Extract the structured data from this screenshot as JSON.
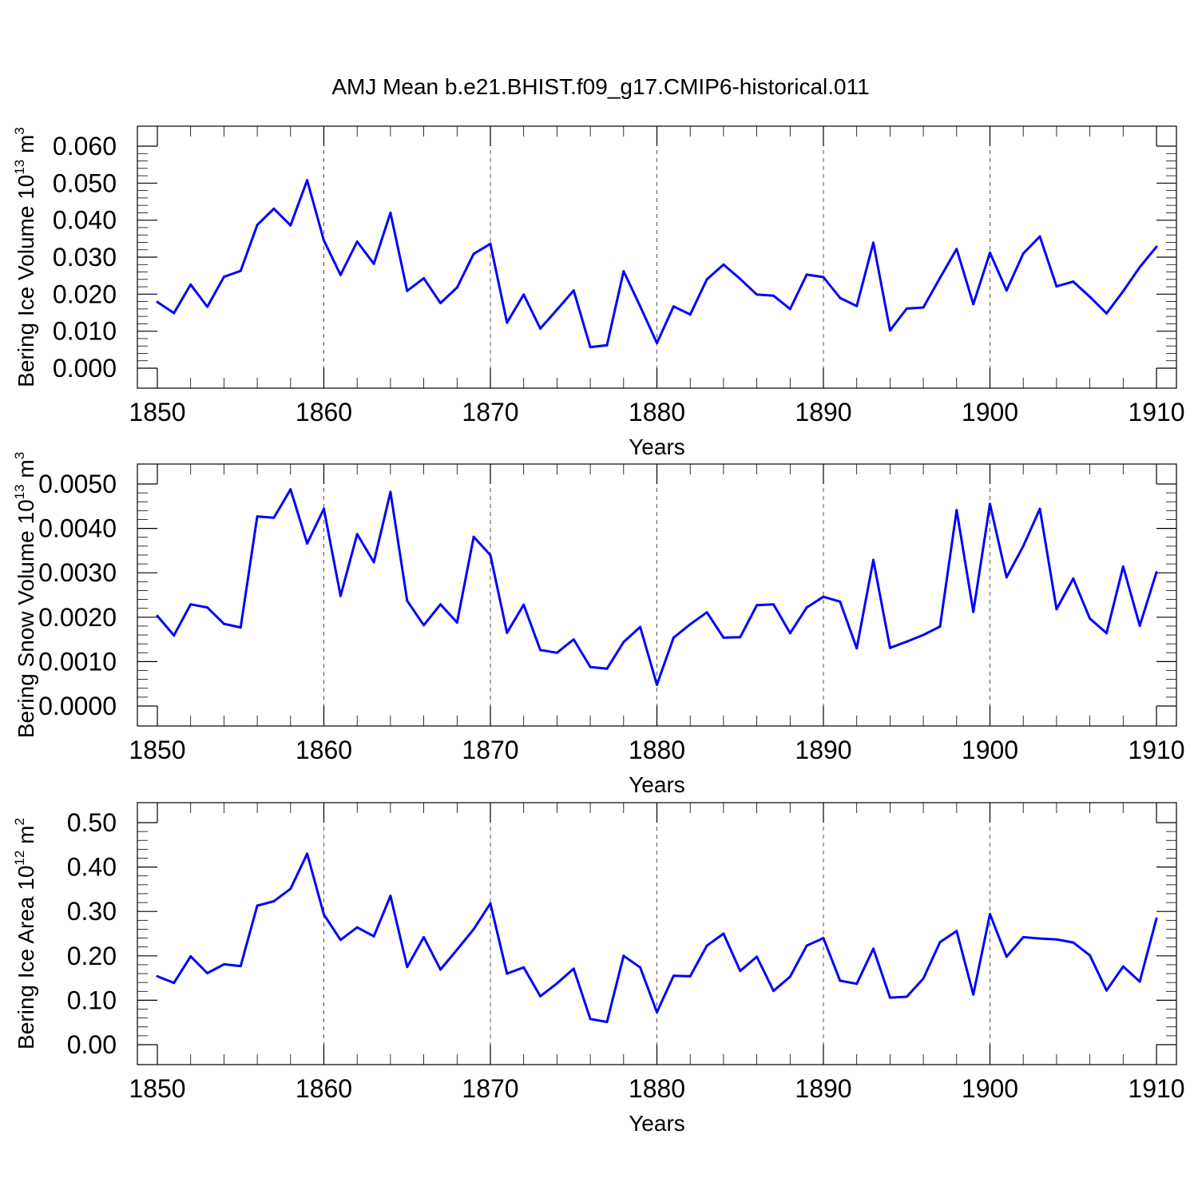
{
  "title": "AMJ Mean b.e21.BHIST.f09_g17.CMIP6-historical.011",
  "line_color": "#0000ff",
  "chart_data": [
    {
      "type": "line",
      "ylabel": "Bering Ice Volume 10",
      "ylabel_exp": "13",
      "ylabel_unit": " m",
      "ylabel_unit_exp": "3",
      "xlabel": "Years",
      "xlim": [
        1850,
        1910
      ],
      "ylim": [
        0.0,
        0.06
      ],
      "yticks": [
        "0.000",
        "0.010",
        "0.020",
        "0.030",
        "0.040",
        "0.050",
        "0.060"
      ],
      "yticks_values": [
        0,
        0.01,
        0.02,
        0.03,
        0.04,
        0.05,
        0.06
      ],
      "xticks": [
        "1850",
        "1860",
        "1870",
        "1880",
        "1890",
        "1900",
        "1910"
      ],
      "xticks_values": [
        1850,
        1860,
        1870,
        1880,
        1890,
        1900,
        1910
      ],
      "grid": "vertical dashed at major x ticks",
      "x": [
        1850,
        1851,
        1852,
        1853,
        1854,
        1855,
        1856,
        1857,
        1858,
        1859,
        1860,
        1861,
        1862,
        1863,
        1864,
        1865,
        1866,
        1867,
        1868,
        1869,
        1870,
        1871,
        1872,
        1873,
        1874,
        1875,
        1876,
        1877,
        1878,
        1879,
        1880,
        1881,
        1882,
        1883,
        1884,
        1885,
        1886,
        1887,
        1888,
        1889,
        1890,
        1891,
        1892,
        1893,
        1894,
        1895,
        1896,
        1897,
        1898,
        1899,
        1900,
        1901,
        1902,
        1903,
        1904,
        1905,
        1906,
        1907,
        1908,
        1909,
        1910
      ],
      "y": [
        0.0179,
        0.0149,
        0.0226,
        0.0166,
        0.0247,
        0.0263,
        0.0387,
        0.0431,
        0.0386,
        0.0508,
        0.0345,
        0.0252,
        0.0342,
        0.0282,
        0.042,
        0.0209,
        0.0243,
        0.0176,
        0.0218,
        0.0309,
        0.0336,
        0.0123,
        0.0199,
        0.0107,
        0.0158,
        0.021,
        0.0057,
        0.0062,
        0.0262,
        0.0167,
        0.0068,
        0.0167,
        0.0145,
        0.024,
        0.028,
        0.0241,
        0.0199,
        0.0196,
        0.016,
        0.0253,
        0.0246,
        0.019,
        0.0168,
        0.0339,
        0.0102,
        0.0161,
        0.0164,
        0.0244,
        0.0322,
        0.0173,
        0.0312,
        0.021,
        0.031,
        0.0356,
        0.0221,
        0.0234,
        0.0193,
        0.0148,
        0.0208,
        0.0273,
        0.0328
      ]
    },
    {
      "type": "line",
      "ylabel": "Bering Snow Volume 10",
      "ylabel_exp": "13",
      "ylabel_unit": " m",
      "ylabel_unit_exp": "3",
      "xlabel": "Years",
      "xlim": [
        1850,
        1910
      ],
      "ylim": [
        0.0,
        0.005
      ],
      "yticks": [
        "0.0000",
        "0.0010",
        "0.0020",
        "0.0030",
        "0.0040",
        "0.0050"
      ],
      "yticks_values": [
        0,
        0.001,
        0.002,
        0.003,
        0.004,
        0.005
      ],
      "xticks": [
        "1850",
        "1860",
        "1870",
        "1880",
        "1890",
        "1900",
        "1910"
      ],
      "xticks_values": [
        1850,
        1860,
        1870,
        1880,
        1890,
        1900,
        1910
      ],
      "grid": "vertical dashed at major x ticks",
      "x": [
        1850,
        1851,
        1852,
        1853,
        1854,
        1855,
        1856,
        1857,
        1858,
        1859,
        1860,
        1861,
        1862,
        1863,
        1864,
        1865,
        1866,
        1867,
        1868,
        1869,
        1870,
        1871,
        1872,
        1873,
        1874,
        1875,
        1876,
        1877,
        1878,
        1879,
        1880,
        1881,
        1882,
        1883,
        1884,
        1885,
        1886,
        1887,
        1888,
        1889,
        1890,
        1891,
        1892,
        1893,
        1894,
        1895,
        1896,
        1897,
        1898,
        1899,
        1900,
        1901,
        1902,
        1903,
        1904,
        1905,
        1906,
        1907,
        1908,
        1909,
        1910
      ],
      "y": [
        0.00203,
        0.00159,
        0.00229,
        0.00222,
        0.00185,
        0.00177,
        0.00427,
        0.00424,
        0.00488,
        0.00366,
        0.00444,
        0.00248,
        0.00387,
        0.00324,
        0.00482,
        0.00237,
        0.00182,
        0.00229,
        0.00188,
        0.00381,
        0.0034,
        0.00165,
        0.00228,
        0.00126,
        0.0012,
        0.0015,
        0.00088,
        0.00084,
        0.00144,
        0.00178,
        0.00048,
        0.00154,
        0.00184,
        0.00211,
        0.00154,
        0.00155,
        0.00227,
        0.00229,
        0.00164,
        0.00222,
        0.00246,
        0.00235,
        0.0013,
        0.00329,
        0.00131,
        0.00145,
        0.0016,
        0.00179,
        0.00441,
        0.00212,
        0.00455,
        0.0029,
        0.0036,
        0.00444,
        0.00218,
        0.00287,
        0.00197,
        0.00164,
        0.00314,
        0.00181,
        0.00301
      ]
    },
    {
      "type": "line",
      "ylabel": "Bering Ice Area 10",
      "ylabel_exp": "12",
      "ylabel_unit": " m",
      "ylabel_unit_exp": "2",
      "xlabel": "Years",
      "xlim": [
        1850,
        1910
      ],
      "ylim": [
        0.0,
        0.5
      ],
      "yticks": [
        "0.00",
        "0.10",
        "0.20",
        "0.30",
        "0.40",
        "0.50"
      ],
      "yticks_values": [
        0,
        0.1,
        0.2,
        0.3,
        0.4,
        0.5
      ],
      "xticks": [
        "1850",
        "1860",
        "1870",
        "1880",
        "1890",
        "1900",
        "1910"
      ],
      "xticks_values": [
        1850,
        1860,
        1870,
        1880,
        1890,
        1900,
        1910
      ],
      "grid": "vertical dashed at major x ticks",
      "x": [
        1850,
        1851,
        1852,
        1853,
        1854,
        1855,
        1856,
        1857,
        1858,
        1859,
        1860,
        1861,
        1862,
        1863,
        1864,
        1865,
        1866,
        1867,
        1868,
        1869,
        1870,
        1871,
        1872,
        1873,
        1874,
        1875,
        1876,
        1877,
        1878,
        1879,
        1880,
        1881,
        1882,
        1883,
        1884,
        1885,
        1886,
        1887,
        1888,
        1889,
        1890,
        1891,
        1892,
        1893,
        1894,
        1895,
        1896,
        1897,
        1898,
        1899,
        1900,
        1901,
        1902,
        1903,
        1904,
        1905,
        1906,
        1907,
        1908,
        1909,
        1910
      ],
      "y": [
        0.154,
        0.139,
        0.199,
        0.161,
        0.181,
        0.177,
        0.313,
        0.323,
        0.351,
        0.43,
        0.293,
        0.236,
        0.264,
        0.244,
        0.335,
        0.175,
        0.242,
        0.169,
        0.214,
        0.26,
        0.318,
        0.16,
        0.174,
        0.109,
        0.138,
        0.171,
        0.058,
        0.051,
        0.2,
        0.174,
        0.073,
        0.155,
        0.154,
        0.223,
        0.25,
        0.166,
        0.198,
        0.121,
        0.153,
        0.223,
        0.24,
        0.144,
        0.137,
        0.216,
        0.106,
        0.108,
        0.149,
        0.231,
        0.256,
        0.113,
        0.294,
        0.198,
        0.242,
        0.239,
        0.237,
        0.23,
        0.201,
        0.122,
        0.176,
        0.142,
        0.284
      ]
    }
  ]
}
